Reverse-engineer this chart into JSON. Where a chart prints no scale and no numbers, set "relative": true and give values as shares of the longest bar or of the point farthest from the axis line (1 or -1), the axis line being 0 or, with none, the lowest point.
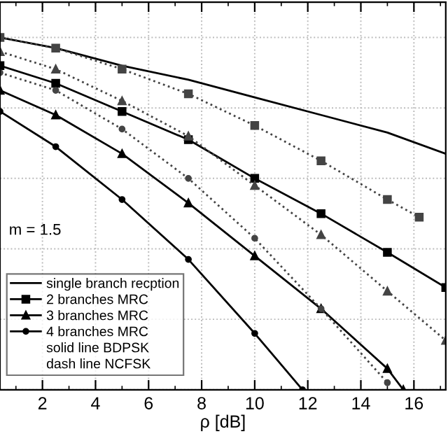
{
  "chart_data": {
    "type": "line",
    "relative": true,
    "xlabel": "ρ [dB]",
    "xlim": [
      0.4,
      17.2
    ],
    "xticks": [
      2,
      4,
      6,
      8,
      10,
      12,
      14,
      16
    ],
    "grid": true,
    "tick_labels": "x",
    "legend": "bottom left",
    "annotations": [
      "m = 1.5",
      "solid line BDPSK",
      "dash line NCFSK"
    ],
    "series": [
      {
        "name": "single branch recption",
        "color": "#000000",
        "marker": "none",
        "line_style": "solid",
        "x": [
          0.4,
          2.5,
          5,
          7.5,
          10,
          12.5,
          15,
          17.2
        ],
        "values": [
          1.0,
          0.97,
          0.92,
          0.88,
          0.83,
          0.78,
          0.73,
          0.67
        ]
      },
      {
        "name": "2 branches MRC",
        "color": "#000000",
        "marker": "square",
        "line_style": "solid",
        "x": [
          0.4,
          2.5,
          5,
          7.5,
          10,
          12.5,
          15,
          17.2
        ],
        "values": [
          0.92,
          0.87,
          0.79,
          0.71,
          0.6,
          0.5,
          0.39,
          0.29
        ]
      },
      {
        "name": "3 branches MRC",
        "color": "#000000",
        "marker": "triangle",
        "line_style": "solid",
        "x": [
          0.4,
          2.5,
          5,
          7.5,
          10,
          12.5,
          15,
          15.6
        ],
        "values": [
          0.85,
          0.78,
          0.67,
          0.53,
          0.38,
          0.23,
          0.06,
          0.0
        ]
      },
      {
        "name": "4 branches MRC",
        "color": "#000000",
        "marker": "circle",
        "line_style": "solid",
        "x": [
          0.4,
          2.5,
          5,
          7.5,
          10,
          11.8
        ],
        "values": [
          0.79,
          0.69,
          0.54,
          0.37,
          0.16,
          0.0
        ]
      },
      {
        "color": "#444444",
        "marker": "square",
        "line_style": "dotted",
        "x": [
          0.4,
          2.5,
          5,
          7.5,
          10,
          12.5,
          15,
          16.2
        ],
        "values": [
          1.0,
          0.97,
          0.91,
          0.84,
          0.75,
          0.65,
          0.54,
          0.49
        ]
      },
      {
        "color": "#444444",
        "marker": "triangle",
        "line_style": "dotted",
        "x": [
          0.4,
          2.5,
          5,
          7.5,
          10,
          12.5,
          15,
          17.2
        ],
        "values": [
          0.96,
          0.91,
          0.82,
          0.72,
          0.58,
          0.44,
          0.28,
          0.14
        ]
      },
      {
        "color": "#444444",
        "marker": "circle",
        "line_style": "dotted",
        "x": [
          0.4,
          2.5,
          5,
          7.5,
          10,
          12.5,
          15
        ],
        "values": [
          0.9,
          0.85,
          0.74,
          0.6,
          0.43,
          0.23,
          0.02
        ]
      }
    ]
  }
}
